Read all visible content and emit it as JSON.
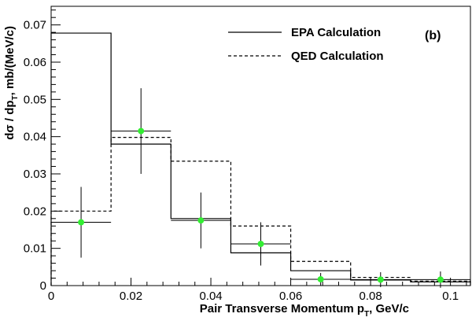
{
  "chart_data": {
    "type": "histogram",
    "panel_label": "(b)",
    "xlabel": "Pair Transverse Momentum p",
    "xlabel_sub": "T",
    "xlabel_unit": ", GeV/c",
    "ylabel": "dσ / dp",
    "ylabel_sub": "T",
    "ylabel_unit": ", mb/(MeV/c)",
    "xlim": [
      0,
      0.105
    ],
    "ylim": [
      0,
      0.075
    ],
    "x_ticks": [
      0,
      0.02,
      0.04,
      0.06,
      0.08,
      0.1
    ],
    "x_tick_labels": [
      "0",
      "0.02",
      "0.04",
      "0.06",
      "0.08",
      "0.1"
    ],
    "y_ticks": [
      0,
      0.01,
      0.02,
      0.03,
      0.04,
      0.05,
      0.06,
      0.07
    ],
    "y_tick_labels": [
      "0",
      "0.01",
      "0.02",
      "0.03",
      "0.04",
      "0.05",
      "0.06",
      "0.07"
    ],
    "bin_edges": [
      0,
      0.015,
      0.03,
      0.045,
      0.06,
      0.075,
      0.09,
      0.105
    ],
    "series": [
      {
        "name": "EPA Calculation",
        "style": "solid",
        "values": [
          0.0678,
          0.038,
          0.018,
          0.0088,
          0.004,
          0.0015,
          0.001
        ]
      },
      {
        "name": "QED Calculation",
        "style": "dashed",
        "values": [
          0.02,
          0.0398,
          0.0334,
          0.016,
          0.0065,
          0.0022,
          0.0012
        ]
      }
    ],
    "data_points": {
      "color": "#33ee33",
      "points": [
        {
          "x": 0.0075,
          "y": 0.017,
          "yerr": 0.0095
        },
        {
          "x": 0.0225,
          "y": 0.0415,
          "yerr": 0.0115
        },
        {
          "x": 0.0375,
          "y": 0.0175,
          "yerr": 0.0075
        },
        {
          "x": 0.0525,
          "y": 0.0112,
          "yerr": 0.0058
        },
        {
          "x": 0.0675,
          "y": 0.0017,
          "yerr": 0.0017
        },
        {
          "x": 0.0825,
          "y": 0.0016,
          "yerr": 0.002
        },
        {
          "x": 0.0975,
          "y": 0.0016,
          "yerr": 0.0022
        }
      ]
    },
    "legend_position": "top-right"
  }
}
